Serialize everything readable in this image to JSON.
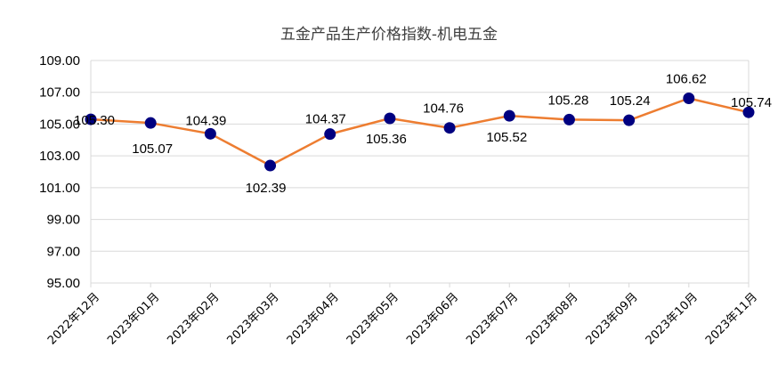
{
  "chart_data": {
    "type": "line",
    "title": "五金产品生产价格指数-机电五金",
    "xlabel": "",
    "ylabel": "",
    "categories": [
      "2022年12月",
      "2023年01月",
      "2023年02月",
      "2023年03月",
      "2023年04月",
      "2023年05月",
      "2023年06月",
      "2023年07月",
      "2023年08月",
      "2023年09月",
      "2023年10月",
      "2023年11月"
    ],
    "series": [
      {
        "values": [
          105.3,
          105.07,
          104.39,
          102.39,
          104.37,
          105.36,
          104.76,
          105.52,
          105.28,
          105.24,
          106.62,
          105.74
        ],
        "labels": [
          "105.30",
          "105.07",
          "104.39",
          "102.39",
          "104.37",
          "105.36",
          "104.76",
          "105.52",
          "105.28",
          "105.24",
          "106.62",
          "105.74"
        ],
        "color": "#ED7D31",
        "marker_color": "#000080"
      }
    ],
    "ylim": [
      95,
      109
    ],
    "yticks": [
      "95.00",
      "97.00",
      "99.00",
      "101.00",
      "103.00",
      "105.00",
      "107.00",
      "109.00"
    ],
    "grid": true,
    "legend": "none"
  }
}
